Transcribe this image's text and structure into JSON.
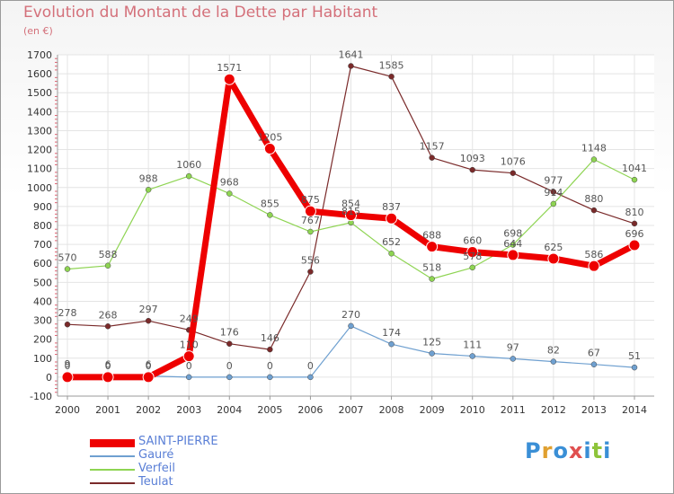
{
  "title": "Evolution du Montant de la Dette par Habitant",
  "subtitle": "(en €)",
  "logo": {
    "text": "Proxiti",
    "colors": [
      "#3a8fd6",
      "#e0a030",
      "#3a8fd6",
      "#e05050",
      "#3a8fd6",
      "#8ec43a",
      "#3a8fd6"
    ]
  },
  "chart_data": {
    "type": "line",
    "x": [
      "2000",
      "2001",
      "2002",
      "2003",
      "2004",
      "2005",
      "2006",
      "2007",
      "2008",
      "2009",
      "2010",
      "2011",
      "2012",
      "2013",
      "2014"
    ],
    "ylim": [
      -100,
      1700
    ],
    "yticks": [
      -100,
      0,
      100,
      200,
      300,
      400,
      500,
      600,
      700,
      800,
      900,
      1000,
      1100,
      1200,
      1300,
      1400,
      1500,
      1600,
      1700
    ],
    "grid": true,
    "legend_position": "bottom-left",
    "series": [
      {
        "name": "SAINT-PIERRE",
        "color": "#ee0000",
        "width": 7,
        "marker": 6,
        "values": [
          0,
          0,
          0,
          110,
          1571,
          1205,
          875,
          854,
          837,
          688,
          660,
          644,
          625,
          586,
          696
        ],
        "labels": [
          "0",
          "0",
          "0",
          "110",
          "1571",
          "1205",
          "875",
          "854",
          "837",
          "688",
          "660",
          "644",
          "625",
          "586",
          "696"
        ]
      },
      {
        "name": "Gauré",
        "color": "#6fa0d0",
        "width": 1.2,
        "marker": 3,
        "values": [
          9,
          6,
          6,
          0,
          0,
          0,
          0,
          270,
          174,
          125,
          111,
          97,
          82,
          67,
          51
        ],
        "labels": [
          "9",
          "6",
          "6",
          "0",
          "0",
          "0",
          "0",
          "270",
          "174",
          "125",
          "111",
          "97",
          "82",
          "67",
          "51"
        ]
      },
      {
        "name": "Verfeil",
        "color": "#8ed452",
        "width": 1.2,
        "marker": 3,
        "values": [
          570,
          588,
          988,
          1060,
          968,
          855,
          767,
          815,
          652,
          518,
          578,
          698,
          914,
          1148,
          1041
        ],
        "labels": [
          "570",
          "588",
          "988",
          "1060",
          "968",
          "855",
          "767",
          "815",
          "652",
          "518",
          "578",
          "698",
          "914",
          "1148",
          "1041"
        ]
      },
      {
        "name": "Teulat",
        "color": "#7a2a2a",
        "width": 1.2,
        "marker": 3,
        "values": [
          278,
          268,
          297,
          249,
          176,
          146,
          556,
          1641,
          1585,
          1157,
          1093,
          1076,
          977,
          880,
          810
        ],
        "labels": [
          "278",
          "268",
          "297",
          "249",
          "176",
          "146",
          "556",
          "1641",
          "1585",
          "1157",
          "1093",
          "1076",
          "977",
          "880",
          "810"
        ]
      }
    ]
  }
}
